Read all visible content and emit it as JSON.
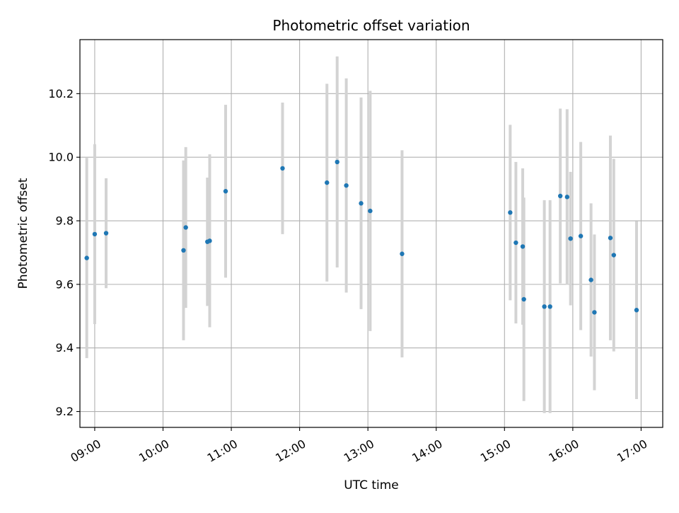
{
  "chart_data": {
    "type": "scatter",
    "title": "Photometric offset variation",
    "xlabel": "UTC time",
    "ylabel": "Photometric offset",
    "xlim": [
      "08:47",
      "17:19"
    ],
    "ylim": [
      9.15,
      10.37
    ],
    "x_ticks": [
      "09:00",
      "10:00",
      "11:00",
      "12:00",
      "13:00",
      "14:00",
      "15:00",
      "16:00",
      "17:00"
    ],
    "y_ticks": [
      9.2,
      9.4,
      9.6,
      9.8,
      10.0,
      10.2
    ],
    "y_tick_labels": [
      "9.2",
      "9.4",
      "9.6",
      "9.8",
      "10.0",
      "10.2"
    ],
    "grid": true,
    "x_tick_rotation": 30,
    "marker_color": "#1f77b4",
    "errorbar_color": "#d3d3d3",
    "points": [
      {
        "time": "08:53",
        "y": 9.683,
        "err": 0.315
      },
      {
        "time": "09:00",
        "y": 9.758,
        "err": 0.283
      },
      {
        "time": "09:10",
        "y": 9.761,
        "err": 0.173
      },
      {
        "time": "10:18",
        "y": 9.707,
        "err": 0.283
      },
      {
        "time": "10:20",
        "y": 9.779,
        "err": 0.253
      },
      {
        "time": "10:39",
        "y": 9.734,
        "err": 0.202
      },
      {
        "time": "10:41",
        "y": 9.737,
        "err": 0.272
      },
      {
        "time": "10:55",
        "y": 9.893,
        "err": 0.272
      },
      {
        "time": "11:45",
        "y": 9.965,
        "err": 0.207
      },
      {
        "time": "12:24",
        "y": 9.92,
        "err": 0.311
      },
      {
        "time": "12:33",
        "y": 9.985,
        "err": 0.332
      },
      {
        "time": "12:41",
        "y": 9.911,
        "err": 0.337
      },
      {
        "time": "12:54",
        "y": 9.855,
        "err": 0.333
      },
      {
        "time": "13:02",
        "y": 9.831,
        "err": 0.378
      },
      {
        "time": "13:30",
        "y": 9.696,
        "err": 0.326
      },
      {
        "time": "15:05",
        "y": 9.826,
        "err": 0.276
      },
      {
        "time": "15:10",
        "y": 9.731,
        "err": 0.254
      },
      {
        "time": "15:16",
        "y": 9.719,
        "err": 0.246
      },
      {
        "time": "15:17",
        "y": 9.553,
        "err": 0.32
      },
      {
        "time": "15:35",
        "y": 9.53,
        "err": 0.335
      },
      {
        "time": "15:40",
        "y": 9.53,
        "err": 0.335
      },
      {
        "time": "15:49",
        "y": 9.878,
        "err": 0.275
      },
      {
        "time": "15:55",
        "y": 9.875,
        "err": 0.276
      },
      {
        "time": "15:58",
        "y": 9.744,
        "err": 0.21
      },
      {
        "time": "16:07",
        "y": 9.752,
        "err": 0.296
      },
      {
        "time": "16:16",
        "y": 9.614,
        "err": 0.241
      },
      {
        "time": "16:19",
        "y": 9.512,
        "err": 0.245
      },
      {
        "time": "16:33",
        "y": 9.746,
        "err": 0.322
      },
      {
        "time": "16:36",
        "y": 9.692,
        "err": 0.303
      },
      {
        "time": "16:56",
        "y": 9.519,
        "err": 0.28
      }
    ]
  }
}
